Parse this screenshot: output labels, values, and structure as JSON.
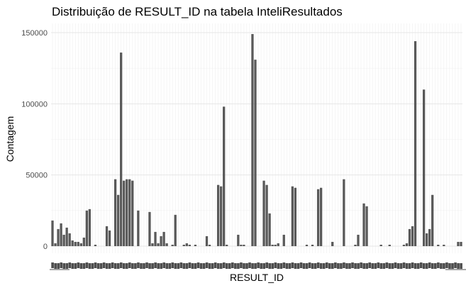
{
  "chart_data": {
    "type": "bar",
    "title": "Distribuição de RESULT_ID na tabela InteliResultados",
    "xlabel": "RESULT_ID",
    "ylabel": "Contagem",
    "ylim": [
      0,
      160000
    ],
    "yticks": [
      0,
      50000,
      100000,
      150000
    ],
    "ytick_labels": [
      "0",
      "50000",
      "100000",
      "150000"
    ],
    "grid": true,
    "bar_color": "#595959",
    "panel_background": "#ffffff",
    "gridline_color": "#ebebeb",
    "x_tick_labels_note": "dense overlapping RESULT_ID labels, illegible",
    "values": [
      18000,
      2000,
      12000,
      16000,
      8000,
      13000,
      9000,
      4000,
      3000,
      3000,
      2000,
      6000,
      25000,
      26000,
      0,
      1000,
      0,
      0,
      0,
      14000,
      11000,
      0,
      47000,
      36000,
      136000,
      46000,
      47000,
      47000,
      46000,
      0,
      25000,
      0,
      0,
      0,
      24000,
      2000,
      10000,
      2000,
      7000,
      10000,
      2000,
      0,
      1000,
      22000,
      0,
      0,
      1000,
      2000,
      1000,
      0,
      1000,
      0,
      0,
      0,
      7000,
      1000,
      0,
      0,
      43000,
      42000,
      98000,
      1000,
      0,
      0,
      0,
      8000,
      1000,
      1000,
      0,
      0,
      149000,
      131000,
      0,
      0,
      46000,
      43000,
      23000,
      1000,
      1000,
      2000,
      0,
      8000,
      0,
      0,
      42000,
      41000,
      0,
      0,
      0,
      1000,
      0,
      1000,
      0,
      40000,
      41000,
      0,
      0,
      0,
      3000,
      0,
      0,
      0,
      47000,
      0,
      0,
      0,
      1000,
      8000,
      0,
      30000,
      28000,
      0,
      0,
      0,
      0,
      1000,
      0,
      0,
      1000,
      0,
      0,
      0,
      0,
      1000,
      2000,
      12000,
      14000,
      144000,
      0,
      0,
      110000,
      9000,
      12000,
      36000,
      0,
      1000,
      0,
      1000,
      0,
      0,
      0,
      0,
      3000,
      3000
    ]
  }
}
